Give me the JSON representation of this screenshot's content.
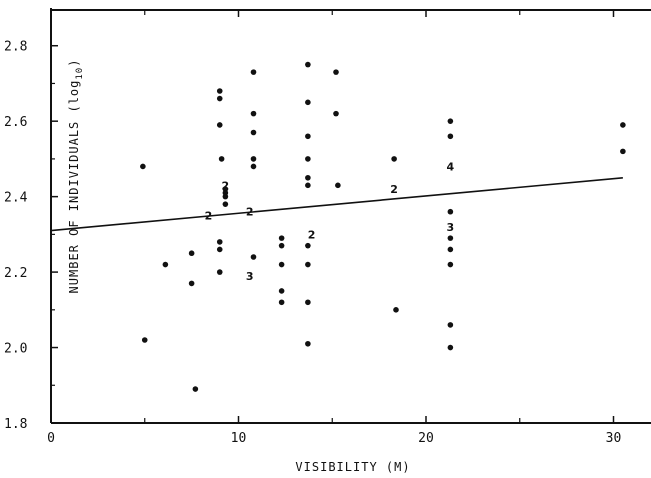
{
  "chart_data": {
    "type": "scatter",
    "title": "",
    "xlabel": "VISIBILITY (M)",
    "ylabel": "NUMBER OF INDIVIDUALS (log10)",
    "ylabel_main": "NUMBER OF INDIVIDUALS (log",
    "ylabel_sub": "10",
    "ylabel_close": ")",
    "xlim": [
      0,
      32
    ],
    "ylim": [
      1.8,
      2.9
    ],
    "x_ticks": [
      0,
      10,
      20,
      30
    ],
    "x_tick_labels": [
      "0",
      "10",
      "20",
      "30"
    ],
    "y_ticks": [
      1.8,
      2.0,
      2.2,
      2.4,
      2.6,
      2.8
    ],
    "y_tick_labels": [
      "1.8",
      "2.0",
      "2.2",
      "2.4",
      "2.6",
      "2.8"
    ],
    "grid": false,
    "points": [
      [
        4.9,
        2.48
      ],
      [
        5.0,
        2.02
      ],
      [
        6.1,
        2.22
      ],
      [
        7.5,
        2.25
      ],
      [
        7.5,
        2.17
      ],
      [
        7.7,
        1.89
      ],
      [
        9.0,
        2.68
      ],
      [
        9.0,
        2.66
      ],
      [
        9.0,
        2.59
      ],
      [
        9.1,
        2.5
      ],
      [
        9.3,
        2.42
      ],
      [
        9.3,
        2.41
      ],
      [
        9.3,
        2.4
      ],
      [
        9.3,
        2.38
      ],
      [
        9.0,
        2.28
      ],
      [
        9.0,
        2.26
      ],
      [
        9.0,
        2.2
      ],
      [
        10.8,
        2.73
      ],
      [
        10.8,
        2.62
      ],
      [
        10.8,
        2.57
      ],
      [
        10.8,
        2.5
      ],
      [
        10.8,
        2.48
      ],
      [
        10.8,
        2.24
      ],
      [
        12.3,
        2.29
      ],
      [
        12.3,
        2.27
      ],
      [
        12.3,
        2.22
      ],
      [
        12.3,
        2.15
      ],
      [
        12.3,
        2.12
      ],
      [
        13.7,
        2.75
      ],
      [
        13.7,
        2.65
      ],
      [
        13.7,
        2.56
      ],
      [
        13.7,
        2.5
      ],
      [
        13.7,
        2.45
      ],
      [
        13.7,
        2.43
      ],
      [
        13.7,
        2.27
      ],
      [
        13.7,
        2.22
      ],
      [
        13.7,
        2.12
      ],
      [
        13.7,
        2.01
      ],
      [
        15.2,
        2.73
      ],
      [
        15.2,
        2.62
      ],
      [
        15.3,
        2.43
      ],
      [
        18.3,
        2.5
      ],
      [
        18.4,
        2.1
      ],
      [
        21.3,
        2.6
      ],
      [
        21.3,
        2.56
      ],
      [
        21.3,
        2.36
      ],
      [
        21.3,
        2.29
      ],
      [
        21.3,
        2.26
      ],
      [
        21.3,
        2.22
      ],
      [
        21.3,
        2.06
      ],
      [
        21.3,
        2.0
      ],
      [
        30.5,
        2.59
      ],
      [
        30.5,
        2.52
      ]
    ],
    "count_labels": [
      {
        "x": 9.3,
        "y": 2.43,
        "text": "2"
      },
      {
        "x": 8.4,
        "y": 2.35,
        "text": "2"
      },
      {
        "x": 10.6,
        "y": 2.36,
        "text": "2"
      },
      {
        "x": 10.6,
        "y": 2.19,
        "text": "3"
      },
      {
        "x": 13.9,
        "y": 2.3,
        "text": "2"
      },
      {
        "x": 18.3,
        "y": 2.42,
        "text": "2"
      },
      {
        "x": 21.3,
        "y": 2.48,
        "text": "4"
      },
      {
        "x": 21.3,
        "y": 2.32,
        "text": "3"
      }
    ],
    "regression_line": {
      "x": [
        0,
        30.5
      ],
      "y": [
        2.31,
        2.45
      ]
    }
  }
}
